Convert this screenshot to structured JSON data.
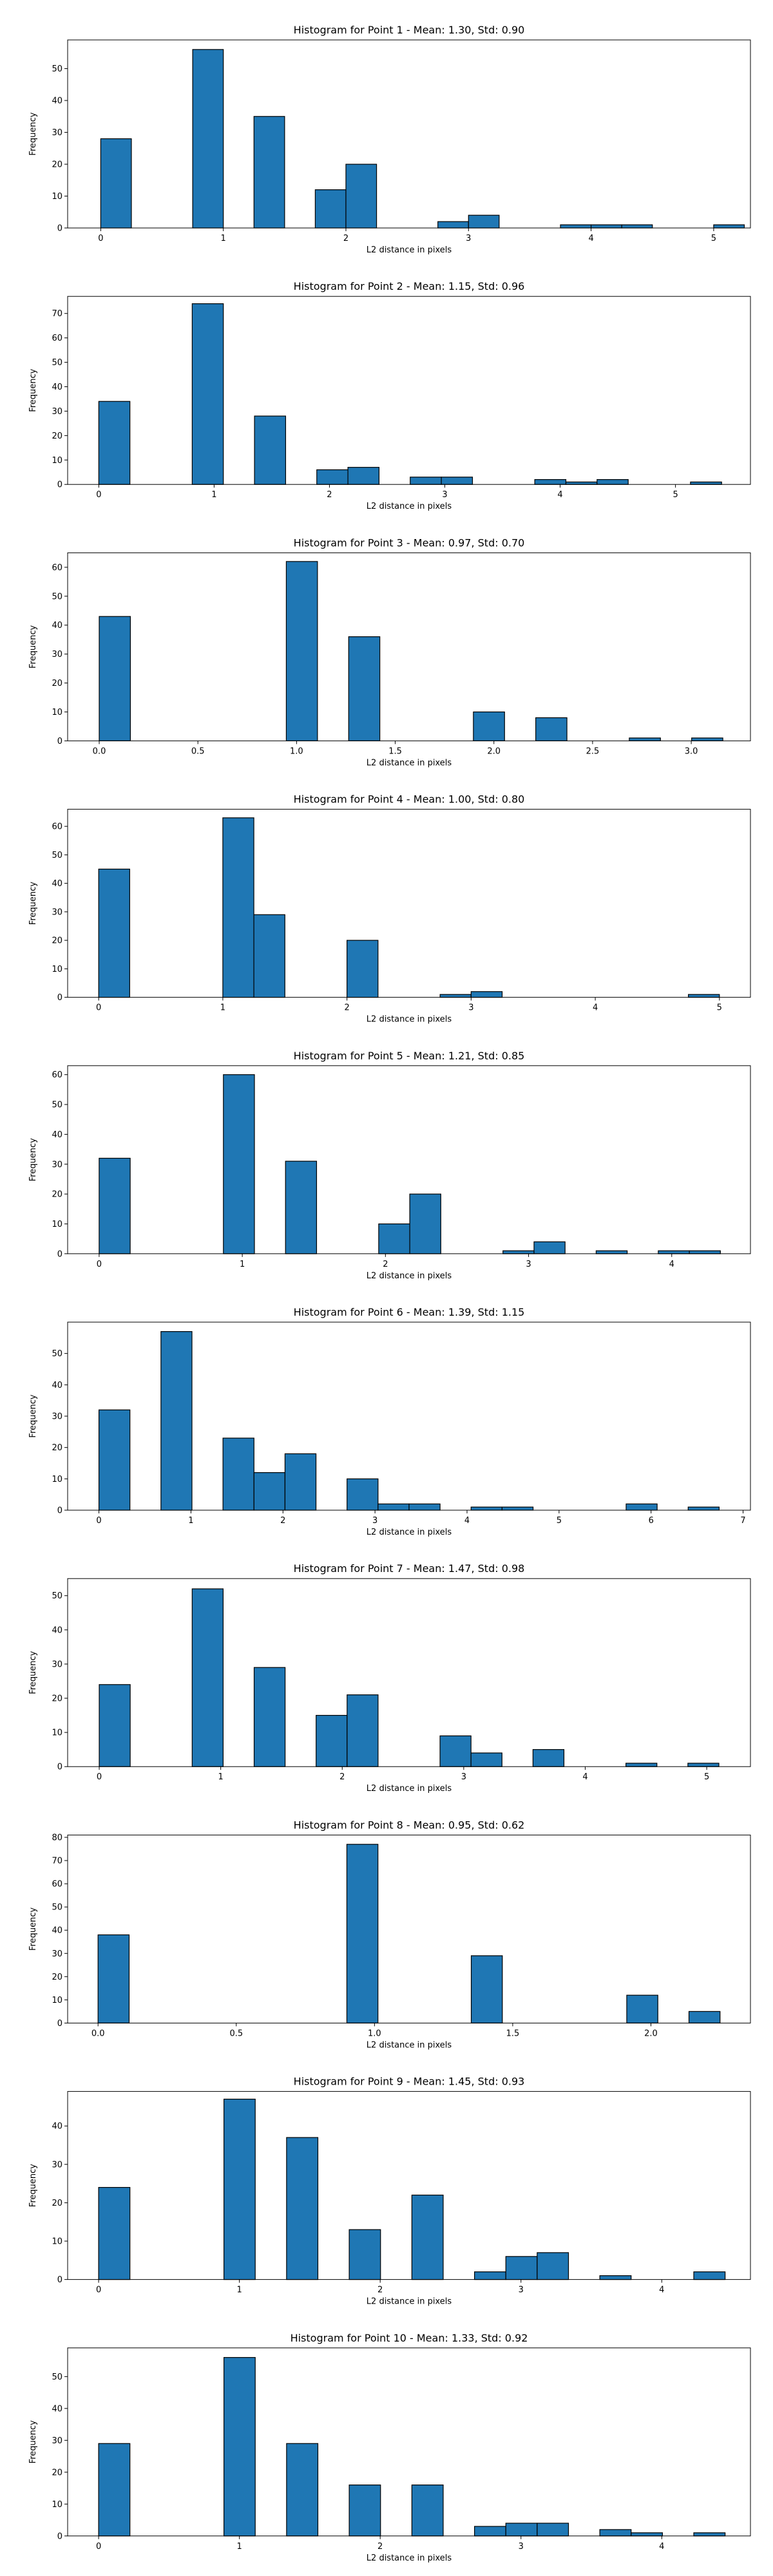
{
  "chart_data": [
    {
      "type": "bar",
      "title": "Histogram for Point 1 - Mean: 1.30, Std: 0.90",
      "xlabel": "L2 distance in pixels",
      "ylabel": "Frequency",
      "xlim": [
        -0.27,
        5.3
      ],
      "ylim": [
        0,
        59
      ],
      "xticks": [
        0,
        1,
        2,
        3,
        4,
        5
      ],
      "yticks": [
        0,
        10,
        20,
        30,
        40,
        50
      ],
      "bin_edges": [
        0,
        0.25,
        0.5,
        0.75,
        1,
        1.25,
        1.5,
        1.75,
        2,
        2.25,
        2.5,
        2.75,
        3,
        3.25,
        3.5,
        3.75,
        4,
        4.25,
        4.5,
        4.75,
        5,
        5.25
      ],
      "counts": [
        28,
        0,
        0,
        56,
        0,
        35,
        0,
        12,
        20,
        0,
        0,
        2,
        4,
        0,
        0,
        1,
        1,
        1,
        0,
        0,
        1
      ]
    },
    {
      "type": "bar",
      "title": "Histogram for Point 2 - Mean: 1.15, Std: 0.96",
      "xlabel": "L2 distance in pixels",
      "ylabel": "Frequency",
      "xlim": [
        -0.27,
        5.65
      ],
      "ylim": [
        0,
        77
      ],
      "xticks": [
        0,
        1,
        2,
        3,
        4,
        5
      ],
      "yticks": [
        0,
        10,
        20,
        30,
        40,
        50,
        60,
        70
      ],
      "bin_edges": [
        0,
        0.27,
        0.54,
        0.81,
        1.08,
        1.35,
        1.62,
        1.89,
        2.16,
        2.43,
        2.7,
        2.97,
        3.24,
        3.51,
        3.78,
        4.05,
        4.32,
        4.59,
        4.86,
        5.13,
        5.4
      ],
      "counts": [
        34,
        0,
        0,
        74,
        0,
        28,
        0,
        6,
        7,
        0,
        3,
        3,
        0,
        0,
        2,
        1,
        2,
        0,
        0,
        1
      ]
    },
    {
      "type": "bar",
      "title": "Histogram for Point 3 - Mean: 0.97, Std: 0.70",
      "xlabel": "L2 distance in pixels",
      "ylabel": "Frequency",
      "xlim": [
        -0.16,
        3.3
      ],
      "ylim": [
        0,
        65
      ],
      "xticks": [
        0.0,
        0.5,
        1.0,
        1.5,
        2.0,
        2.5,
        3.0
      ],
      "yticks": [
        0,
        10,
        20,
        30,
        40,
        50,
        60
      ],
      "bin_edges": [
        0,
        0.158,
        0.316,
        0.474,
        0.632,
        0.79,
        0.948,
        1.106,
        1.264,
        1.422,
        1.58,
        1.738,
        1.896,
        2.054,
        2.212,
        2.37,
        2.528,
        2.686,
        2.844,
        3.002,
        3.16
      ],
      "counts": [
        43,
        0,
        0,
        0,
        0,
        0,
        62,
        0,
        36,
        0,
        0,
        0,
        10,
        0,
        8,
        0,
        0,
        1,
        0,
        1
      ]
    },
    {
      "type": "bar",
      "title": "Histogram for Point 4 - Mean: 1.00, Std: 0.80",
      "xlabel": "L2 distance in pixels",
      "ylabel": "Frequency",
      "xlim": [
        -0.25,
        5.25
      ],
      "ylim": [
        0,
        66
      ],
      "xticks": [
        0,
        1,
        2,
        3,
        4,
        5
      ],
      "yticks": [
        0,
        10,
        20,
        30,
        40,
        50,
        60
      ],
      "bin_edges": [
        0,
        0.25,
        0.5,
        0.75,
        1,
        1.25,
        1.5,
        1.75,
        2,
        2.25,
        2.5,
        2.75,
        3,
        3.25,
        3.5,
        3.75,
        4,
        4.25,
        4.5,
        4.75,
        5
      ],
      "counts": [
        45,
        0,
        0,
        0,
        63,
        29,
        0,
        0,
        20,
        0,
        0,
        1,
        2,
        0,
        0,
        0,
        0,
        0,
        0,
        1
      ]
    },
    {
      "type": "bar",
      "title": "Histogram for Point 5 - Mean: 1.21, Std: 0.85",
      "xlabel": "L2 distance in pixels",
      "ylabel": "Frequency",
      "xlim": [
        -0.22,
        4.55
      ],
      "ylim": [
        0,
        63
      ],
      "xticks": [
        0,
        1,
        2,
        3,
        4
      ],
      "yticks": [
        0,
        10,
        20,
        30,
        40,
        50,
        60
      ],
      "bin_edges": [
        0,
        0.217,
        0.434,
        0.651,
        0.868,
        1.085,
        1.302,
        1.519,
        1.736,
        1.953,
        2.17,
        2.387,
        2.604,
        2.821,
        3.038,
        3.255,
        3.472,
        3.689,
        3.906,
        4.123,
        4.34
      ],
      "counts": [
        32,
        0,
        0,
        0,
        60,
        0,
        31,
        0,
        0,
        10,
        20,
        0,
        0,
        1,
        4,
        0,
        1,
        0,
        1,
        1
      ]
    },
    {
      "type": "bar",
      "title": "Histogram for Point 6 - Mean: 1.39, Std: 1.15",
      "xlabel": "L2 distance in pixels",
      "ylabel": "Frequency",
      "xlim": [
        -0.34,
        7.08
      ],
      "ylim": [
        0,
        60
      ],
      "xticks": [
        0,
        1,
        2,
        3,
        4,
        5,
        6,
        7
      ],
      "yticks": [
        0,
        10,
        20,
        30,
        40,
        50
      ],
      "bin_edges": [
        0,
        0.337,
        0.674,
        1.011,
        1.348,
        1.685,
        2.022,
        2.359,
        2.696,
        3.033,
        3.37,
        3.707,
        4.044,
        4.381,
        4.718,
        5.055,
        5.392,
        5.729,
        6.066,
        6.403,
        6.74
      ],
      "counts": [
        32,
        0,
        57,
        0,
        23,
        12,
        18,
        0,
        10,
        2,
        2,
        0,
        1,
        1,
        0,
        0,
        0,
        2,
        0,
        1
      ]
    },
    {
      "type": "bar",
      "title": "Histogram for Point 7 - Mean: 1.47, Std: 0.98",
      "xlabel": "L2 distance in pixels",
      "ylabel": "Frequency",
      "xlim": [
        -0.26,
        5.36
      ],
      "ylim": [
        0,
        55
      ],
      "xticks": [
        0,
        1,
        2,
        3,
        4,
        5
      ],
      "yticks": [
        0,
        10,
        20,
        30,
        40,
        50
      ],
      "bin_edges": [
        0,
        0.255,
        0.51,
        0.765,
        1.02,
        1.275,
        1.53,
        1.785,
        2.04,
        2.295,
        2.55,
        2.805,
        3.06,
        3.315,
        3.57,
        3.825,
        4.08,
        4.335,
        4.59,
        4.845,
        5.1
      ],
      "counts": [
        24,
        0,
        0,
        52,
        0,
        29,
        0,
        15,
        21,
        0,
        0,
        9,
        4,
        0,
        5,
        0,
        0,
        1,
        0,
        1
      ]
    },
    {
      "type": "bar",
      "title": "Histogram for Point 8 - Mean: 0.95, Std: 0.62",
      "xlabel": "L2 distance in pixels",
      "ylabel": "Frequency",
      "xlim": [
        -0.11,
        2.36
      ],
      "ylim": [
        0,
        81
      ],
      "xticks": [
        0.0,
        0.5,
        1.0,
        1.5,
        2.0
      ],
      "yticks": [
        0,
        10,
        20,
        30,
        40,
        50,
        60,
        70,
        80
      ],
      "bin_edges": [
        0,
        0.1125,
        0.225,
        0.3375,
        0.45,
        0.5625,
        0.675,
        0.7875,
        0.9,
        1.0125,
        1.125,
        1.2375,
        1.35,
        1.4625,
        1.575,
        1.6875,
        1.8,
        1.9125,
        2.025,
        2.1375,
        2.25
      ],
      "counts": [
        38,
        0,
        0,
        0,
        0,
        0,
        0,
        0,
        77,
        0,
        0,
        0,
        29,
        0,
        0,
        0,
        0,
        12,
        0,
        5
      ]
    },
    {
      "type": "bar",
      "title": "Histogram for Point 9 - Mean: 1.45, Std: 0.93",
      "xlabel": "L2 distance in pixels",
      "ylabel": "Frequency",
      "xlim": [
        -0.22,
        4.63
      ],
      "ylim": [
        0,
        49
      ],
      "xticks": [
        0,
        1,
        2,
        3,
        4
      ],
      "yticks": [
        0,
        10,
        20,
        30,
        40
      ],
      "bin_edges": [
        0,
        0.2225,
        0.445,
        0.6675,
        0.89,
        1.1125,
        1.335,
        1.5575,
        1.78,
        2.0025,
        2.225,
        2.4475,
        2.67,
        2.8925,
        3.115,
        3.3375,
        3.56,
        3.7825,
        4.005,
        4.2275,
        4.45
      ],
      "counts": [
        24,
        0,
        0,
        0,
        47,
        0,
        37,
        0,
        13,
        0,
        22,
        0,
        2,
        6,
        7,
        0,
        1,
        0,
        0,
        2
      ]
    },
    {
      "type": "bar",
      "title": "Histogram for Point 10 - Mean: 1.33, Std: 0.92",
      "xlabel": "L2 distance in pixels",
      "ylabel": "Frequency",
      "xlim": [
        -0.22,
        4.63
      ],
      "ylim": [
        0,
        59
      ],
      "xticks": [
        0,
        1,
        2,
        3,
        4
      ],
      "yticks": [
        0,
        10,
        20,
        30,
        40,
        50
      ],
      "bin_edges": [
        0,
        0.2225,
        0.445,
        0.6675,
        0.89,
        1.1125,
        1.335,
        1.5575,
        1.78,
        2.0025,
        2.225,
        2.4475,
        2.67,
        2.8925,
        3.115,
        3.3375,
        3.56,
        3.7825,
        4.005,
        4.2275,
        4.45
      ],
      "counts": [
        29,
        0,
        0,
        0,
        56,
        0,
        29,
        0,
        16,
        0,
        16,
        0,
        3,
        4,
        4,
        0,
        2,
        1,
        0,
        1
      ]
    }
  ]
}
